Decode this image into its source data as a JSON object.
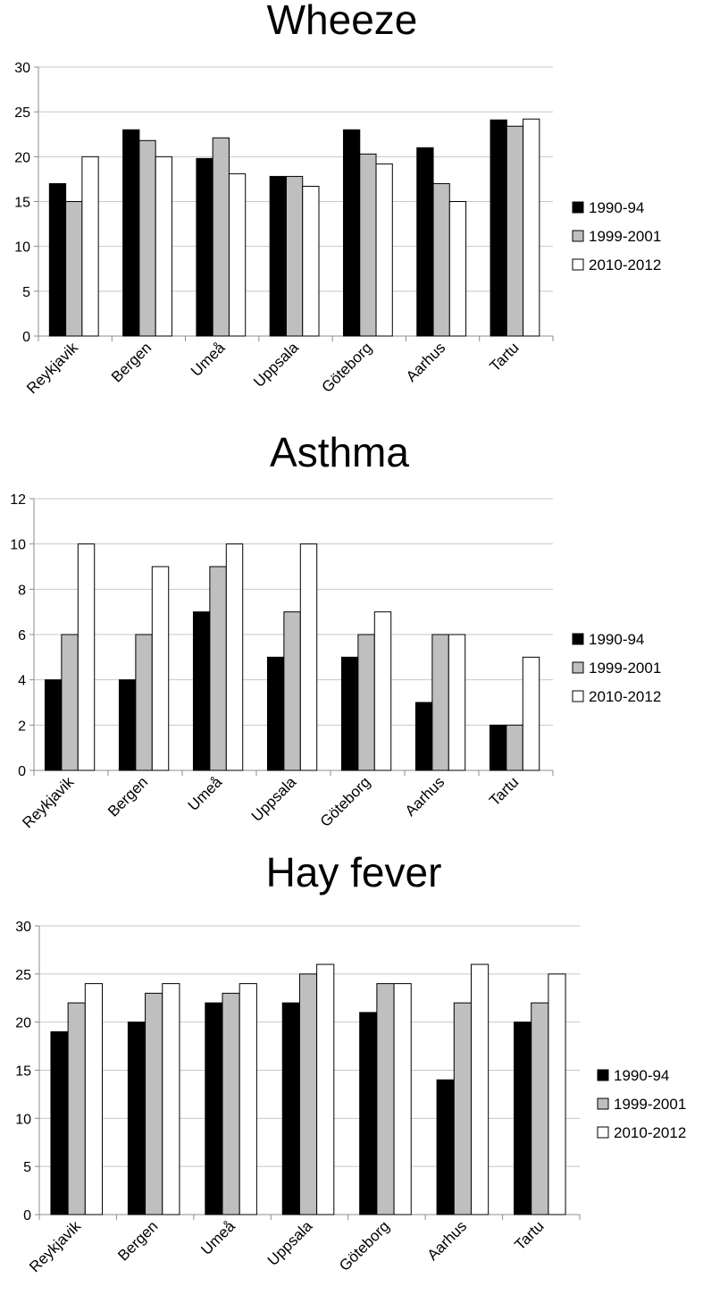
{
  "colors": {
    "series_fills": [
      "#000000",
      "#bfbfbf",
      "#ffffff"
    ]
  },
  "chart_data": [
    {
      "type": "bar",
      "title": "Wheeze",
      "categories": [
        "Reykjavik",
        "Bergen",
        "Umeå",
        "Uppsala",
        "Göteborg",
        "Aarhus",
        "Tartu"
      ],
      "series": [
        {
          "name": "1990-94",
          "values": [
            17,
            23,
            19.8,
            17.8,
            23,
            21,
            24.1
          ]
        },
        {
          "name": "1999-2001",
          "values": [
            15,
            21.8,
            22.1,
            17.8,
            20.3,
            17,
            23.4
          ]
        },
        {
          "name": "2010-2012",
          "values": [
            20,
            20,
            18.1,
            16.7,
            19.2,
            15,
            24.2
          ]
        }
      ],
      "ylim": [
        0,
        30
      ],
      "yticks": [
        0,
        5,
        10,
        15,
        20,
        25,
        30
      ],
      "xlabel": "",
      "ylabel": "",
      "grid": true,
      "legend": "right"
    },
    {
      "type": "bar",
      "title": "Asthma",
      "categories": [
        "Reykjavik",
        "Bergen",
        "Umeå",
        "Uppsala",
        "Göteborg",
        "Aarhus",
        "Tartu"
      ],
      "series": [
        {
          "name": "1990-94",
          "values": [
            4,
            4,
            7,
            5,
            5,
            3,
            2
          ]
        },
        {
          "name": "1999-2001",
          "values": [
            6,
            6,
            9,
            7,
            6,
            6,
            2
          ]
        },
        {
          "name": "2010-2012",
          "values": [
            10,
            9,
            10,
            10,
            7,
            6,
            5
          ]
        }
      ],
      "ylim": [
        0,
        12
      ],
      "yticks": [
        0,
        2,
        4,
        6,
        8,
        10,
        12
      ],
      "xlabel": "",
      "ylabel": "",
      "grid": true,
      "legend": "right"
    },
    {
      "type": "bar",
      "title": "Hay fever",
      "categories": [
        "Reykjavik",
        "Bergen",
        "Umeå",
        "Uppsala",
        "Göteborg",
        "Aarhus",
        "Tartu"
      ],
      "series": [
        {
          "name": "1990-94",
          "values": [
            19,
            20,
            22,
            22,
            21,
            14,
            20
          ]
        },
        {
          "name": "1999-2001",
          "values": [
            22,
            23,
            23,
            25,
            24,
            22,
            22
          ]
        },
        {
          "name": "2010-2012",
          "values": [
            24,
            24,
            24,
            26,
            24,
            26,
            25
          ]
        }
      ],
      "ylim": [
        0,
        30
      ],
      "yticks": [
        0,
        5,
        10,
        15,
        20,
        25,
        30
      ],
      "xlabel": "",
      "ylabel": "",
      "grid": true,
      "legend": "right"
    }
  ]
}
